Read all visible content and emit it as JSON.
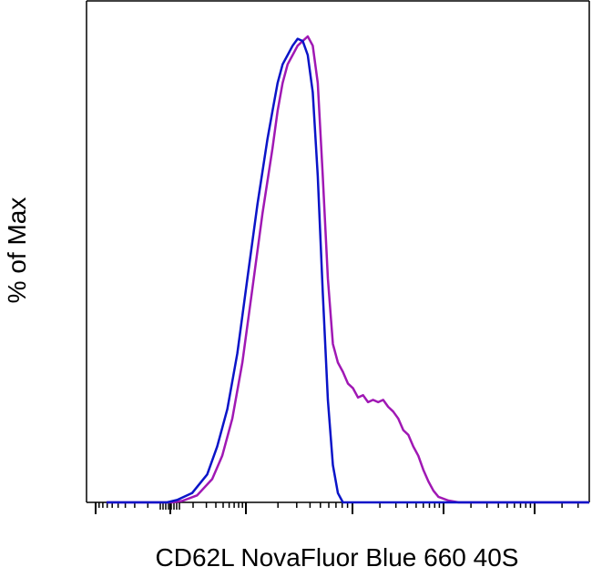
{
  "chart_data": {
    "type": "line",
    "title": "",
    "xlabel": "CD62L NovaFluor Blue 660 40S",
    "ylabel": "% of Max",
    "x_scale": "biexponential",
    "ylim": [
      0,
      100
    ],
    "grid": false,
    "legend": "none",
    "series": [
      {
        "color": "#0a14c8",
        "points": [
          [
            0.04,
            0
          ],
          [
            0.16,
            0
          ],
          [
            0.18,
            0.5
          ],
          [
            0.21,
            2
          ],
          [
            0.24,
            6
          ],
          [
            0.26,
            12
          ],
          [
            0.28,
            20
          ],
          [
            0.3,
            32
          ],
          [
            0.32,
            48
          ],
          [
            0.34,
            64
          ],
          [
            0.36,
            78
          ],
          [
            0.37,
            84
          ],
          [
            0.38,
            90
          ],
          [
            0.39,
            94
          ],
          [
            0.4,
            96
          ],
          [
            0.41,
            98
          ],
          [
            0.42,
            99.5
          ],
          [
            0.43,
            99
          ],
          [
            0.44,
            96
          ],
          [
            0.45,
            88
          ],
          [
            0.46,
            70
          ],
          [
            0.47,
            45
          ],
          [
            0.48,
            22
          ],
          [
            0.49,
            8
          ],
          [
            0.5,
            2
          ],
          [
            0.51,
            0
          ],
          [
            0.65,
            0
          ],
          [
            1.0,
            0
          ]
        ]
      },
      {
        "color": "#a018b4",
        "points": [
          [
            0.04,
            0
          ],
          [
            0.17,
            0
          ],
          [
            0.19,
            0.3
          ],
          [
            0.22,
            1.5
          ],
          [
            0.25,
            5
          ],
          [
            0.27,
            10
          ],
          [
            0.29,
            18
          ],
          [
            0.31,
            30
          ],
          [
            0.33,
            46
          ],
          [
            0.35,
            62
          ],
          [
            0.37,
            76
          ],
          [
            0.38,
            84
          ],
          [
            0.39,
            90
          ],
          [
            0.4,
            94
          ],
          [
            0.41,
            96
          ],
          [
            0.42,
            98
          ],
          [
            0.43,
            99
          ],
          [
            0.44,
            100
          ],
          [
            0.45,
            98
          ],
          [
            0.46,
            90
          ],
          [
            0.47,
            70
          ],
          [
            0.48,
            48
          ],
          [
            0.49,
            34
          ],
          [
            0.5,
            30
          ],
          [
            0.51,
            28
          ],
          [
            0.52,
            25.5
          ],
          [
            0.53,
            24.5
          ],
          [
            0.54,
            22.5
          ],
          [
            0.55,
            23
          ],
          [
            0.56,
            21.5
          ],
          [
            0.57,
            22
          ],
          [
            0.58,
            21.5
          ],
          [
            0.59,
            22
          ],
          [
            0.6,
            20.5
          ],
          [
            0.61,
            19.5
          ],
          [
            0.62,
            18
          ],
          [
            0.63,
            15.5
          ],
          [
            0.64,
            14.5
          ],
          [
            0.65,
            12
          ],
          [
            0.66,
            10
          ],
          [
            0.67,
            7
          ],
          [
            0.68,
            4.5
          ],
          [
            0.69,
            2.5
          ],
          [
            0.7,
            1.2
          ],
          [
            0.72,
            0.4
          ],
          [
            0.74,
            0
          ],
          [
            1.0,
            0
          ]
        ]
      }
    ]
  }
}
